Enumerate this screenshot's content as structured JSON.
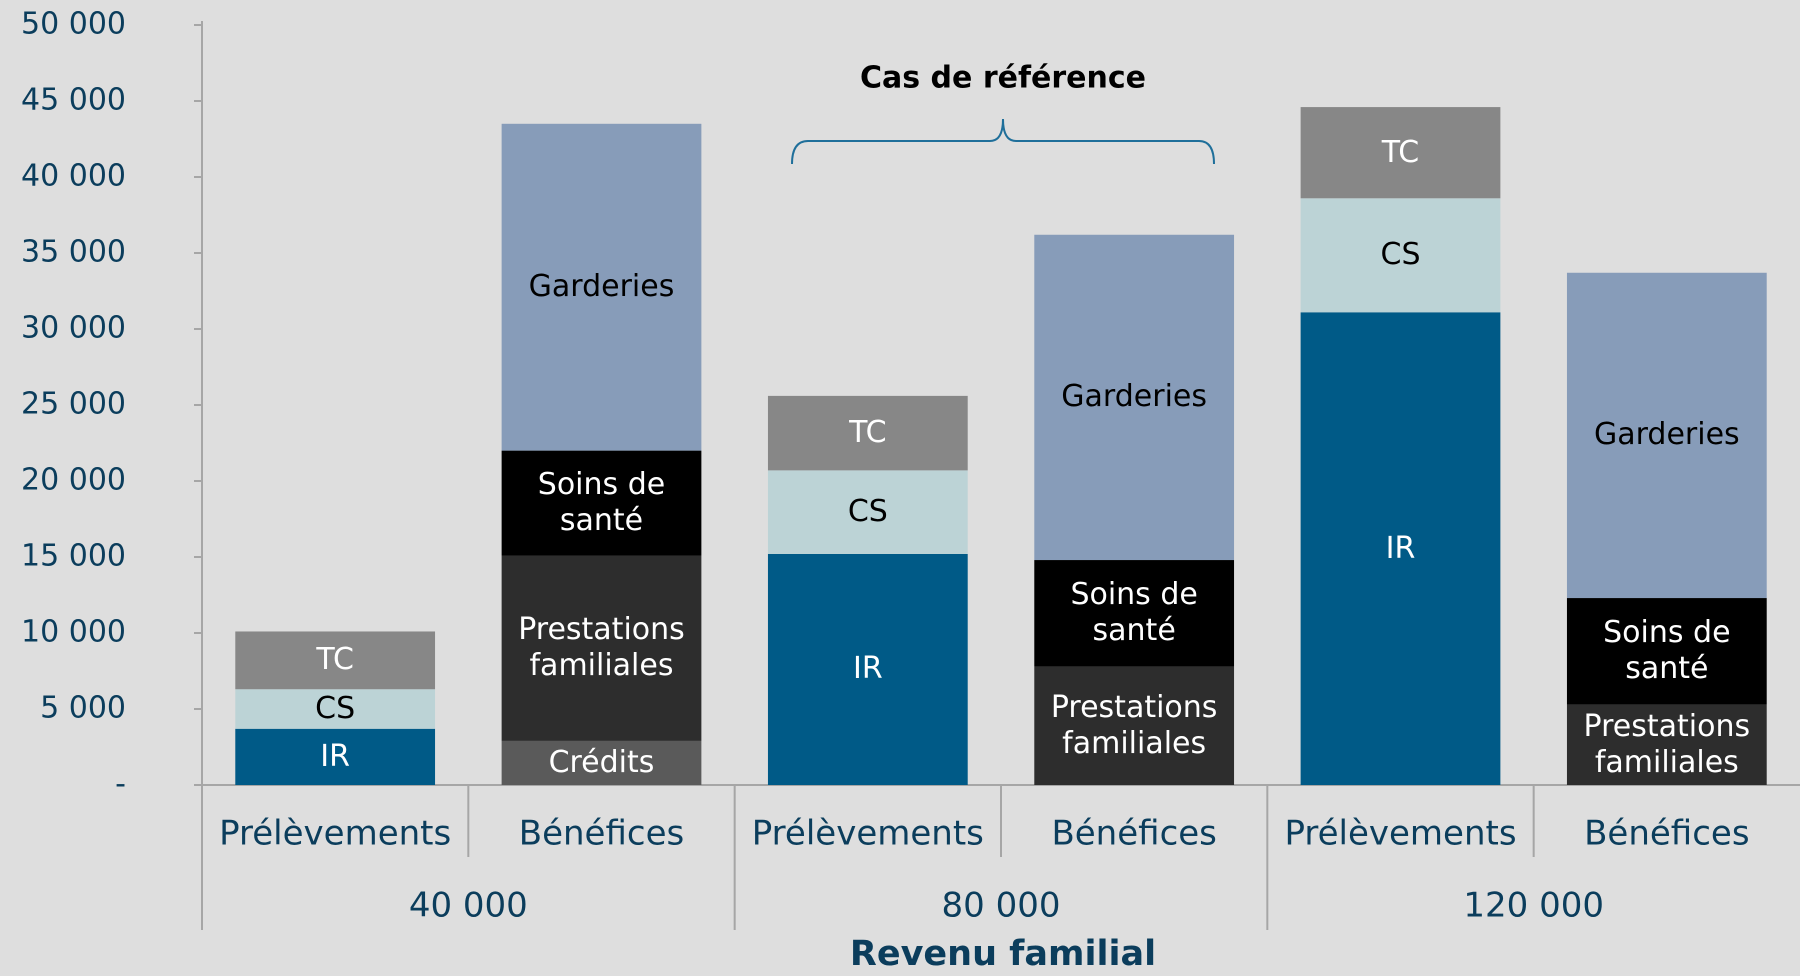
{
  "chart_data": {
    "type": "stacked_bar",
    "xlabel": "Revenu familial",
    "annotation": "Cas de référence",
    "categories": [
      "Prélèvements",
      "Bénéfices",
      "Prélèvements",
      "Bénéfices",
      "Prélèvements",
      "Bénéfices"
    ],
    "groups": [
      "40 000",
      "80 000",
      "120 000"
    ],
    "series": [
      {
        "name": "IR",
        "color": "#005a87",
        "values": [
          3700,
          null,
          15200,
          null,
          31100,
          null
        ]
      },
      {
        "name": "CS",
        "color": "#bcd3d6",
        "values": [
          2600,
          null,
          5500,
          null,
          7500,
          null
        ]
      },
      {
        "name": "TC",
        "color": "#878787",
        "values": [
          3800,
          null,
          4900,
          null,
          6000,
          null
        ]
      },
      {
        "name": "Crédits",
        "color": "#5a5a5a",
        "values": [
          null,
          2900,
          null,
          null,
          null,
          null
        ]
      },
      {
        "name": "Prestations familiales",
        "color": "#2d2d2d",
        "values": [
          null,
          12200,
          null,
          7800,
          null,
          5300
        ]
      },
      {
        "name": "Soins de santé",
        "color": "#000000",
        "values": [
          null,
          6900,
          null,
          7000,
          null,
          7000
        ]
      },
      {
        "name": "Garderies",
        "color": "#879cb9",
        "values": [
          null,
          21500,
          null,
          21400,
          null,
          21400
        ]
      }
    ],
    "ylim": [
      0,
      50000
    ],
    "yticks": [
      {
        "value": 0,
        "label": "-"
      },
      {
        "value": 5000,
        "label": "5 000"
      },
      {
        "value": 10000,
        "label": "10 000"
      },
      {
        "value": 15000,
        "label": "15 000"
      },
      {
        "value": 20000,
        "label": "20 000"
      },
      {
        "value": 25000,
        "label": "25 000"
      },
      {
        "value": 30000,
        "label": "30 000"
      },
      {
        "value": 35000,
        "label": "35 000"
      },
      {
        "value": 40000,
        "label": "40 000"
      },
      {
        "value": 45000,
        "label": "45 000"
      },
      {
        "value": 50000,
        "label": "50 000"
      }
    ]
  }
}
